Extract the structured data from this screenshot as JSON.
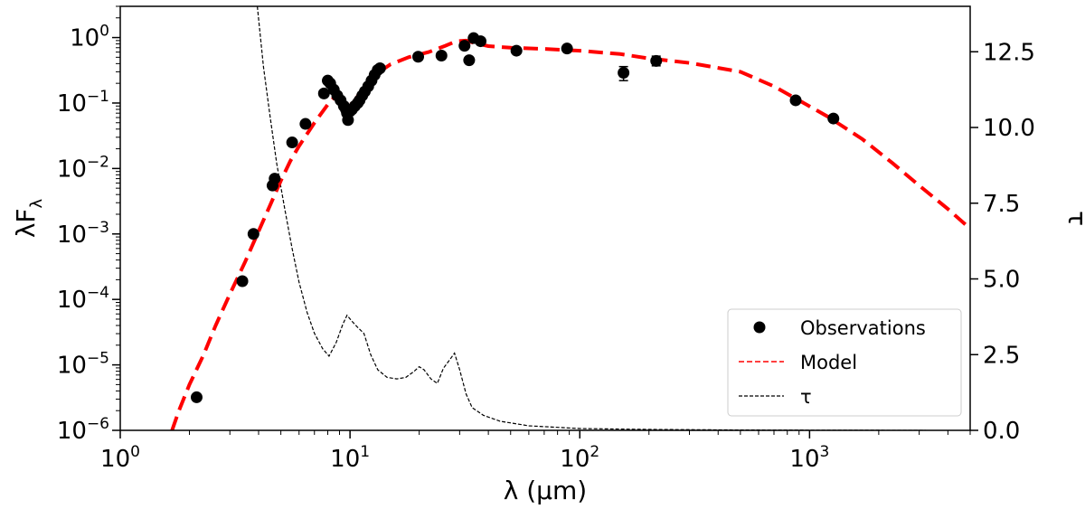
{
  "chart_data": {
    "type": "line",
    "xscale": "log",
    "xlim": [
      1,
      5000
    ],
    "ylim_left": [
      1e-06,
      3
    ],
    "ylim_right": [
      0,
      14
    ],
    "xlabel": "λ (μm)",
    "ylabel_left": "λF",
    "ylabel_left_sub": "λ",
    "ylabel_right": "τ",
    "x_ticks": [
      {
        "value": 1,
        "base": "10",
        "exp": "0"
      },
      {
        "value": 10,
        "base": "10",
        "exp": "1"
      },
      {
        "value": 100,
        "base": "10",
        "exp": "2"
      },
      {
        "value": 1000,
        "base": "10",
        "exp": "3"
      }
    ],
    "y_left_ticks": [
      {
        "value": 1e-06,
        "base": "10",
        "exp": "−6"
      },
      {
        "value": 1e-05,
        "base": "10",
        "exp": "−5"
      },
      {
        "value": 0.0001,
        "base": "10",
        "exp": "−4"
      },
      {
        "value": 0.001,
        "base": "10",
        "exp": "−3"
      },
      {
        "value": 0.01,
        "base": "10",
        "exp": "−2"
      },
      {
        "value": 0.1,
        "base": "10",
        "exp": "−1"
      },
      {
        "value": 1,
        "base": "10",
        "exp": "0"
      }
    ],
    "y_right_ticks": [
      {
        "value": 0,
        "label": "0.0"
      },
      {
        "value": 2.5,
        "label": "2.5"
      },
      {
        "value": 5,
        "label": "5.0"
      },
      {
        "value": 7.5,
        "label": "7.5"
      },
      {
        "value": 10,
        "label": "10.0"
      },
      {
        "value": 12.5,
        "label": "12.5"
      }
    ],
    "legend": {
      "position": "lower-right",
      "entries": [
        {
          "label": "Observations",
          "style": "marker",
          "color": "#000000"
        },
        {
          "label": "Model",
          "style": "dashed",
          "color": "#ff0000"
        },
        {
          "label": "τ",
          "style": "dashed",
          "color": "#000000"
        }
      ]
    },
    "series": [
      {
        "name": "Observations",
        "axis": "left",
        "style": "scatter",
        "color": "#000000",
        "points": [
          [
            2.15,
            3.2e-06
          ],
          [
            3.4,
            0.00019
          ],
          [
            3.8,
            0.001
          ],
          [
            4.6,
            0.0055
          ],
          [
            4.7,
            0.007
          ],
          [
            5.6,
            0.025
          ],
          [
            6.4,
            0.048
          ],
          [
            7.7,
            0.14
          ],
          [
            8.0,
            0.22
          ],
          [
            8.2,
            0.2
          ],
          [
            8.5,
            0.16
          ],
          [
            8.8,
            0.13
          ],
          [
            9.1,
            0.11
          ],
          [
            9.4,
            0.09
          ],
          [
            9.6,
            0.08
          ],
          [
            9.7,
            0.07
          ],
          [
            9.8,
            0.055
          ],
          [
            10.0,
            0.075
          ],
          [
            10.2,
            0.08
          ],
          [
            10.5,
            0.09
          ],
          [
            10.8,
            0.1
          ],
          [
            11.0,
            0.11
          ],
          [
            11.3,
            0.13
          ],
          [
            11.6,
            0.15
          ],
          [
            12.0,
            0.18
          ],
          [
            12.4,
            0.22
          ],
          [
            12.8,
            0.27
          ],
          [
            13.2,
            0.32
          ],
          [
            13.5,
            0.34
          ],
          [
            19.8,
            0.51
          ],
          [
            25,
            0.53
          ],
          [
            31.5,
            0.75
          ],
          [
            33,
            0.45
          ],
          [
            34.5,
            0.98
          ],
          [
            37,
            0.88
          ],
          [
            53,
            0.63
          ],
          [
            88,
            0.68
          ],
          [
            155,
            0.29
          ],
          [
            215,
            0.44
          ],
          [
            870,
            0.11
          ],
          [
            1270,
            0.058
          ]
        ],
        "errors": [
          [
            155,
            0.22,
            0.36
          ],
          [
            215,
            0.37,
            0.52
          ],
          [
            88,
            0.62,
            0.74
          ]
        ]
      },
      {
        "name": "Model",
        "axis": "left",
        "style": "dashed",
        "color": "#ff0000",
        "points": [
          [
            1.68,
            1e-06
          ],
          [
            1.8,
            2e-06
          ],
          [
            2.0,
            5e-06
          ],
          [
            2.3,
            1.4e-05
          ],
          [
            2.6,
            4e-05
          ],
          [
            3.0,
            0.00012
          ],
          [
            3.5,
            0.00038
          ],
          [
            4.0,
            0.0011
          ],
          [
            4.5,
            0.0028
          ],
          [
            5.0,
            0.0065
          ],
          [
            5.5,
            0.013
          ],
          [
            6.0,
            0.022
          ],
          [
            7.0,
            0.05
          ],
          [
            8.0,
            0.095
          ],
          [
            8.5,
            0.12
          ],
          [
            9.0,
            0.11
          ],
          [
            9.7,
            0.09
          ],
          [
            10.3,
            0.1
          ],
          [
            11.0,
            0.14
          ],
          [
            12.0,
            0.21
          ],
          [
            13.0,
            0.28
          ],
          [
            15.0,
            0.39
          ],
          [
            18.0,
            0.5
          ],
          [
            22.0,
            0.6
          ],
          [
            26.0,
            0.75
          ],
          [
            29.0,
            0.88
          ],
          [
            32.0,
            0.9
          ],
          [
            35.0,
            0.82
          ],
          [
            40.0,
            0.74
          ],
          [
            50.0,
            0.7
          ],
          [
            70.0,
            0.67
          ],
          [
            100.0,
            0.63
          ],
          [
            150.0,
            0.56
          ],
          [
            200.0,
            0.48
          ],
          [
            300.0,
            0.41
          ],
          [
            500.0,
            0.3
          ],
          [
            700.0,
            0.18
          ],
          [
            900.0,
            0.11
          ],
          [
            1200.0,
            0.062
          ],
          [
            1700.0,
            0.028
          ],
          [
            2300.0,
            0.012
          ],
          [
            3000.0,
            0.0055
          ],
          [
            4000.0,
            0.0024
          ],
          [
            5000.0,
            0.0012
          ]
        ]
      },
      {
        "name": "τ",
        "axis": "right",
        "style": "dashed",
        "color": "#000000",
        "points": [
          [
            3.95,
            14.0
          ],
          [
            4.2,
            12.0
          ],
          [
            4.5,
            10.3
          ],
          [
            4.8,
            8.8
          ],
          [
            5.2,
            7.3
          ],
          [
            5.6,
            6.0
          ],
          [
            6.0,
            4.9
          ],
          [
            6.5,
            3.9
          ],
          [
            7.0,
            3.2
          ],
          [
            7.6,
            2.7
          ],
          [
            8.1,
            2.45
          ],
          [
            8.7,
            2.9
          ],
          [
            9.3,
            3.5
          ],
          [
            9.7,
            3.8
          ],
          [
            10.2,
            3.6
          ],
          [
            10.8,
            3.4
          ],
          [
            11.5,
            3.2
          ],
          [
            12.3,
            2.5
          ],
          [
            13.2,
            2.0
          ],
          [
            14.5,
            1.75
          ],
          [
            16.0,
            1.7
          ],
          [
            17.5,
            1.75
          ],
          [
            19.0,
            1.95
          ],
          [
            20.0,
            2.1
          ],
          [
            21.0,
            2.0
          ],
          [
            22.5,
            1.7
          ],
          [
            24.0,
            1.55
          ],
          [
            25.5,
            2.05
          ],
          [
            27.0,
            2.3
          ],
          [
            28.5,
            2.55
          ],
          [
            30.0,
            2.0
          ],
          [
            32.0,
            1.2
          ],
          [
            34.0,
            0.75
          ],
          [
            38.0,
            0.5
          ],
          [
            45.0,
            0.3
          ],
          [
            60.0,
            0.15
          ],
          [
            100.0,
            0.06
          ],
          [
            200.0,
            0.03
          ],
          [
            500.0,
            0.012
          ],
          [
            1000.0,
            0.006
          ],
          [
            2000.0,
            0.003
          ],
          [
            3200.0,
            0.0
          ]
        ]
      }
    ]
  }
}
